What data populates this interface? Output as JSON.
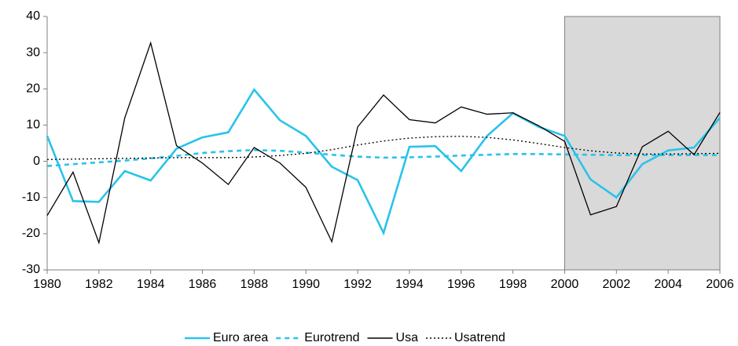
{
  "chart_data": {
    "type": "line",
    "x": [
      1980,
      1981,
      1982,
      1983,
      1984,
      1985,
      1986,
      1987,
      1988,
      1989,
      1990,
      1991,
      1992,
      1993,
      1994,
      1995,
      1996,
      1997,
      1998,
      1999,
      2000,
      2001,
      2002,
      2003,
      2004,
      2005,
      2006
    ],
    "series": [
      {
        "name": "Euro area",
        "color": "#29c3ea",
        "dash": "solid",
        "values": [
          7,
          -11,
          -11.2,
          -2.7,
          -5.3,
          3.5,
          6.6,
          8,
          19.8,
          11.3,
          7,
          -1.5,
          -5.2,
          -19.8,
          4,
          4.2,
          -2.7,
          7,
          13.3,
          9.5,
          7,
          -5,
          -10,
          -0.8,
          3,
          3.8,
          12
        ]
      },
      {
        "name": "Eurotrend",
        "color": "#29c3ea",
        "dash": "dashed",
        "values": [
          -1.3,
          -0.8,
          -0.3,
          0.2,
          0.8,
          1.5,
          2.3,
          2.8,
          3.1,
          2.9,
          2.4,
          1.8,
          1.3,
          1.0,
          1.1,
          1.3,
          1.6,
          1.8,
          2.0,
          2.0,
          1.9,
          1.8,
          1.7,
          1.7,
          1.7,
          1.7,
          1.7
        ]
      },
      {
        "name": "Usa",
        "color": "#000000",
        "dash": "solid",
        "values": [
          -15,
          -3,
          -22.5,
          12,
          32.7,
          4.3,
          -0.5,
          -6.4,
          3.8,
          -0.5,
          -7.2,
          -22.2,
          9.5,
          18.3,
          11.5,
          10.6,
          15,
          13,
          13.4,
          9.8,
          5.5,
          -14.8,
          -12.5,
          4,
          8.3,
          1.8,
          13.5
        ]
      },
      {
        "name": "Usatrend",
        "color": "#000000",
        "dash": "dotted",
        "values": [
          0.5,
          0.6,
          0.7,
          0.8,
          0.9,
          1.0,
          1.0,
          1.0,
          1.2,
          1.6,
          2.2,
          3.2,
          4.5,
          5.6,
          6.4,
          6.8,
          6.9,
          6.6,
          5.9,
          4.9,
          3.8,
          2.9,
          2.3,
          2.0,
          2.0,
          2.1,
          2.2
        ]
      }
    ],
    "xlim": [
      1980,
      2006
    ],
    "xticks": [
      1980,
      1982,
      1984,
      1986,
      1988,
      1990,
      1992,
      1994,
      1996,
      1998,
      2000,
      2002,
      2004,
      2006
    ],
    "ylim": [
      -30,
      40
    ],
    "yticks": [
      -30,
      -20,
      -10,
      0,
      10,
      20,
      30,
      40
    ],
    "shaded_span": [
      2000,
      2006
    ],
    "shade_color": "#d9d9d9",
    "legend": "bottom"
  }
}
